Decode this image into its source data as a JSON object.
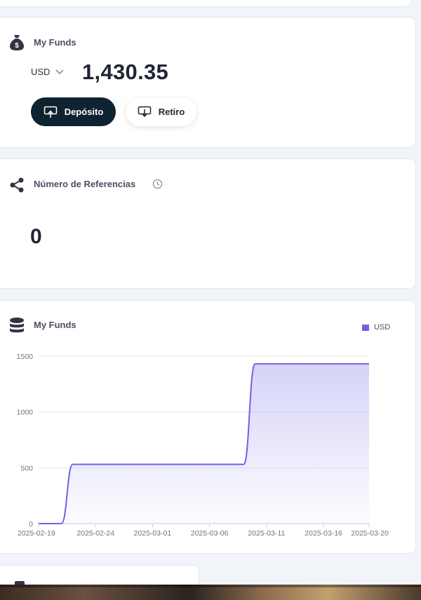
{
  "funds_card": {
    "title": "My Funds",
    "currency": "USD",
    "balance": "1,430.35",
    "deposit_label": "Depósito",
    "withdraw_label": "Retiro"
  },
  "referrals_card": {
    "title": "Número de Referencias",
    "count": "0"
  },
  "chart_card": {
    "title": "My Funds"
  },
  "colors": {
    "accent": "#6c63e6",
    "dark_button": "#0f2230"
  },
  "chart_data": {
    "type": "area",
    "title": "My Funds",
    "xlabel": "",
    "ylabel": "",
    "ylim": [
      0,
      1500
    ],
    "yticks": [
      "0",
      "500",
      "1000",
      "1500"
    ],
    "xticks": [
      "2025-02-19",
      "2025-02-24",
      "2025-03-01",
      "2025-03-06",
      "2025-03-11",
      "2025-03-16",
      "2025-03-20"
    ],
    "grid": true,
    "legend_position": "top-right",
    "series": [
      {
        "name": "USD",
        "x": [
          "2025-02-19",
          "2025-02-21",
          "2025-02-22",
          "2025-03-09",
          "2025-03-10",
          "2025-03-20"
        ],
        "values": [
          0,
          0,
          530,
          530,
          1430.35,
          1430.35
        ]
      }
    ]
  }
}
